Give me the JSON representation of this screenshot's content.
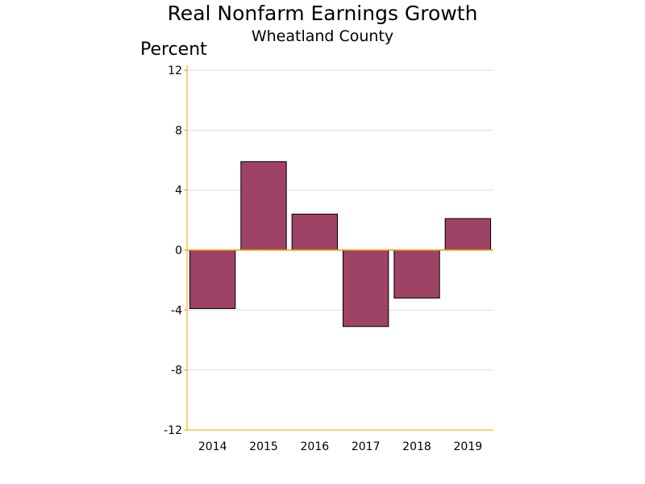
{
  "chart_data": {
    "type": "bar",
    "title": "Real Nonfarm Earnings Growth",
    "subtitle": "Wheatland County",
    "xlabel": "",
    "ylabel": "Percent",
    "categories": [
      "2014",
      "2015",
      "2016",
      "2017",
      "2018",
      "2019"
    ],
    "values": [
      -3.9,
      5.9,
      2.4,
      -5.1,
      -3.2,
      2.1
    ],
    "ylim": [
      -12,
      12
    ],
    "yticks": [
      12,
      8,
      4,
      0,
      -4,
      -8,
      -12
    ],
    "grid": true,
    "legend": "none"
  },
  "colors": {
    "bar_fill": "#9e4266",
    "bar_stroke": "#000000",
    "axis": "#f0a000",
    "grid": "#dddddd"
  }
}
